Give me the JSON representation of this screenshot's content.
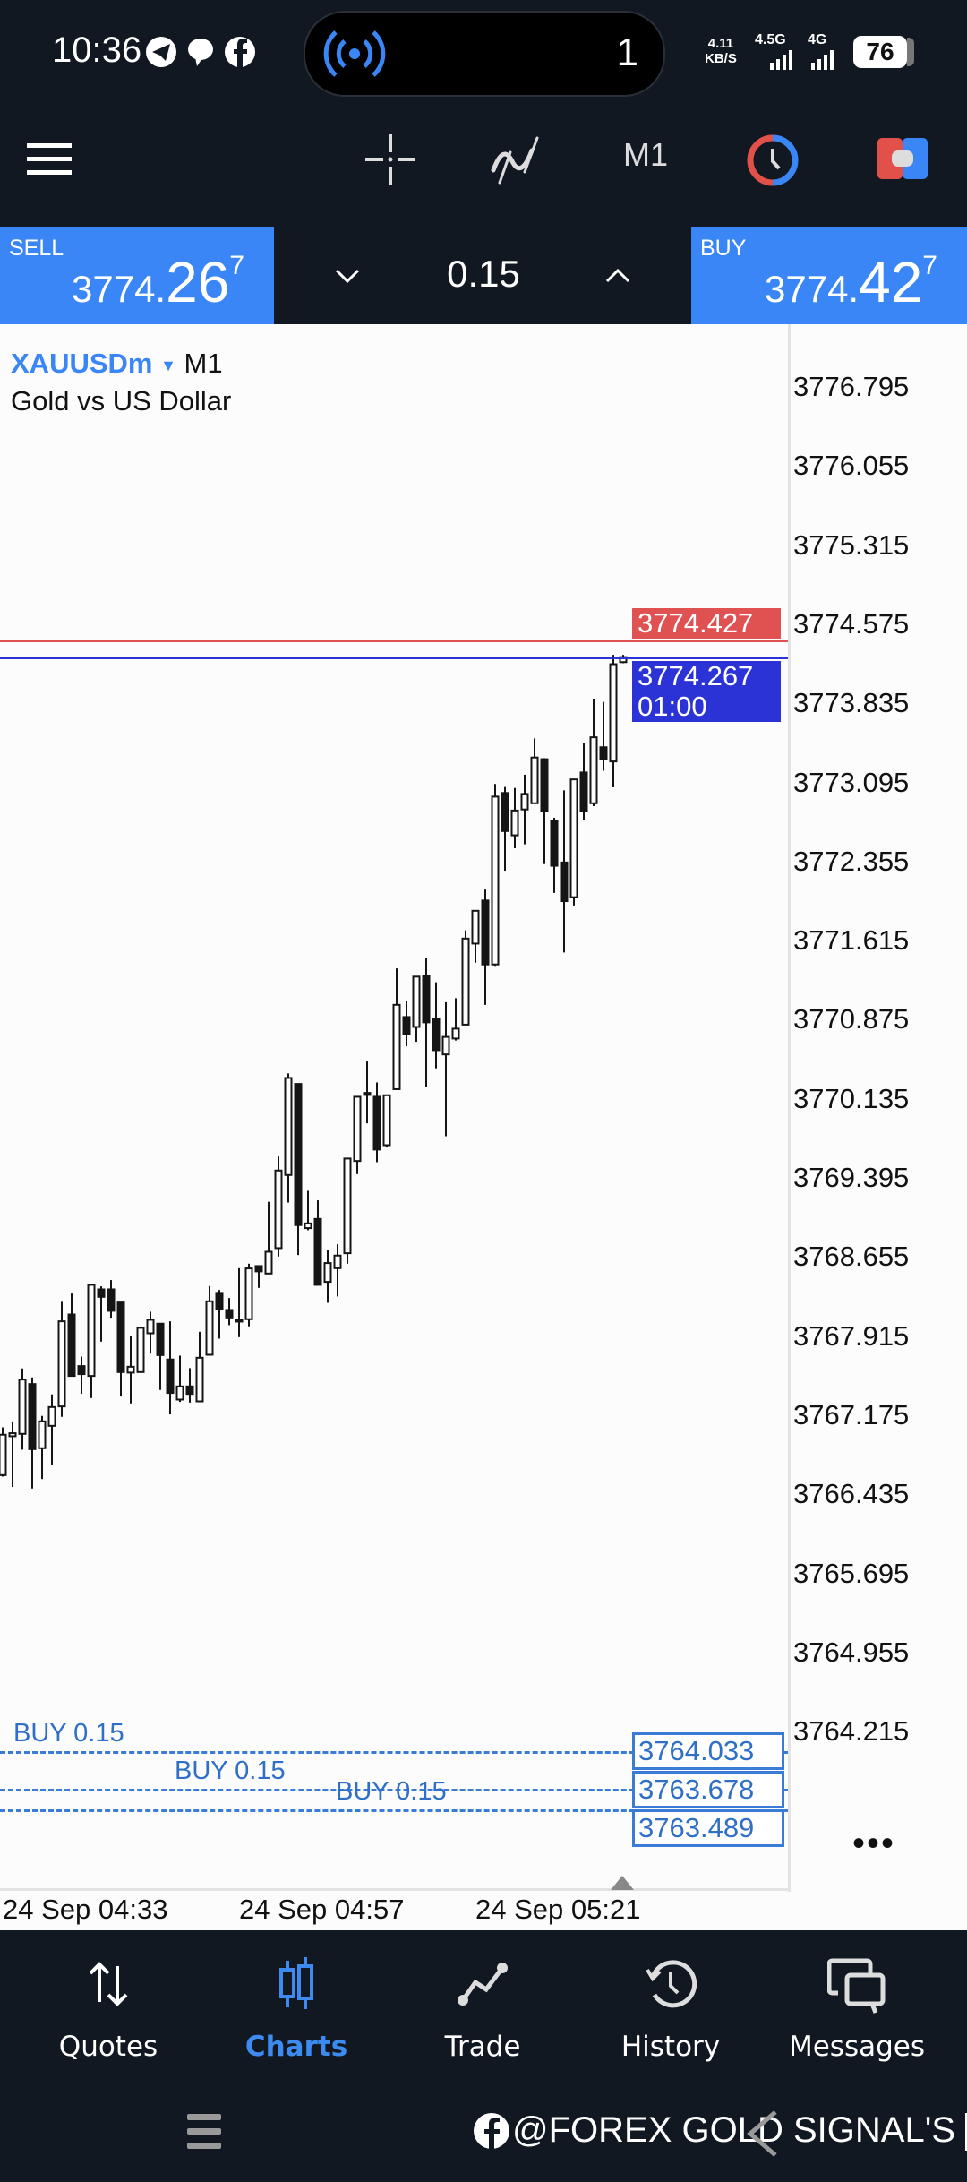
{
  "status_bar": {
    "time": "10:36",
    "notification_icons": [
      "telegram-icon",
      "chat-bubble-icon",
      "facebook-icon"
    ],
    "pill": {
      "icon": "broadcast-icon",
      "count": "1"
    },
    "net_speed_value": "4.11",
    "net_speed_unit": "KB/S",
    "network_1": "4.5G",
    "network_2": "4G",
    "battery": "76"
  },
  "toolbar": {
    "menu_icon": "hamburger-icon",
    "crosshair_icon": "crosshair-icon",
    "indicators_icon": "indicator-icon",
    "timeframe": "M1",
    "clock_icon": "clock-icon",
    "one_click_icon": "one-click-trading-icon"
  },
  "trade_panel": {
    "sell": {
      "label": "SELL",
      "price_main": "3774.",
      "price_big": "26",
      "price_sup": "7"
    },
    "volume": "0.15",
    "buy": {
      "label": "BUY",
      "price_main": "3774.",
      "price_big": "42",
      "price_sup": "7"
    }
  },
  "chart": {
    "symbol": "XAUUSDm",
    "symbol_dropdown_icon": "caret-down-icon",
    "timeframe": "M1",
    "description": "Gold vs US Dollar",
    "ask_label": "3774.427",
    "bid_label": "3774.267",
    "bar_countdown": "01:00",
    "more_icon": "ellipsis-icon",
    "orders": [
      {
        "label": "BUY 0.15",
        "price": "3764.033"
      },
      {
        "label": "BUY 0.15",
        "price": "3763.678"
      },
      {
        "label": "BUY 0.15",
        "price": "3763.489"
      }
    ],
    "colors": {
      "ask_line": "#e05252",
      "bid_line": "#2b33d6",
      "order_line": "#3a7bd5",
      "bull": "#ffffff",
      "bear": "#151515"
    }
  },
  "chart_data": {
    "type": "candlestick",
    "y_ticks": [
      "3776.795",
      "3776.055",
      "3775.315",
      "3774.575",
      "3773.835",
      "3773.095",
      "3772.355",
      "3771.615",
      "3770.875",
      "3770.135",
      "3769.395",
      "3768.655",
      "3767.915",
      "3767.175",
      "3766.435",
      "3765.695",
      "3764.955",
      "3764.215"
    ],
    "x_ticks": [
      "24 Sep 04:33",
      "24 Sep 04:57",
      "24 Sep 05:21"
    ],
    "ask": 3774.427,
    "bid": 3774.267,
    "grid": false,
    "ohlc": [
      [
        3766.614,
        3767.061,
        3766.6,
        3766.992
      ],
      [
        3766.978,
        3767.117,
        3766.503,
        3767.006
      ],
      [
        3767.0,
        3767.612,
        3766.852,
        3767.508
      ],
      [
        3767.466,
        3767.528,
        3766.489,
        3766.857
      ],
      [
        3766.866,
        3767.168,
        3766.578,
        3767.117
      ],
      [
        3767.075,
        3767.369,
        3766.707,
        3767.251
      ],
      [
        3767.257,
        3768.235,
        3767.159,
        3768.053
      ],
      [
        3768.117,
        3768.313,
        3767.542,
        3767.542
      ],
      [
        3767.634,
        3767.723,
        3767.374,
        3767.559
      ],
      [
        3767.542,
        3768.394,
        3767.335,
        3768.394
      ],
      [
        3768.352,
        3768.38,
        3767.863,
        3768.282
      ],
      [
        3768.352,
        3768.439,
        3768.087,
        3768.151
      ],
      [
        3768.229,
        3768.229,
        3767.349,
        3767.578
      ],
      [
        3767.573,
        3767.919,
        3767.285,
        3767.628
      ],
      [
        3767.578,
        3767.992,
        3767.578,
        3767.992
      ],
      [
        3767.941,
        3768.143,
        3767.751,
        3768.067
      ],
      [
        3768.031,
        3768.031,
        3767.411,
        3767.737
      ],
      [
        3767.696,
        3768.053,
        3767.182,
        3767.383
      ],
      [
        3767.321,
        3767.732,
        3767.299,
        3767.444
      ],
      [
        3767.444,
        3767.615,
        3767.293,
        3767.374
      ],
      [
        3767.304,
        3767.955,
        3767.304,
        3767.712
      ],
      [
        3767.74,
        3768.383,
        3767.74,
        3768.24
      ],
      [
        3768.319,
        3768.346,
        3767.891,
        3768.165
      ],
      [
        3768.159,
        3768.271,
        3768.017,
        3768.089
      ],
      [
        3768.067,
        3768.55,
        3767.905,
        3768.053
      ],
      [
        3768.073,
        3768.592,
        3768.006,
        3768.548
      ],
      [
        3768.57,
        3768.578,
        3768.366,
        3768.52
      ],
      [
        3768.5,
        3769.171,
        3768.5,
        3768.704
      ],
      [
        3768.738,
        3769.595,
        3768.659,
        3769.464
      ],
      [
        3769.422,
        3770.372,
        3769.165,
        3770.33
      ],
      [
        3770.274,
        3770.274,
        3768.673,
        3768.953
      ],
      [
        3768.925,
        3769.274,
        3768.905,
        3768.969
      ],
      [
        3769.011,
        3769.185,
        3768.394,
        3768.394
      ],
      [
        3768.422,
        3768.718,
        3768.226,
        3768.598
      ],
      [
        3768.55,
        3768.774,
        3768.285,
        3768.668
      ],
      [
        3768.69,
        3769.576,
        3768.592,
        3769.576
      ],
      [
        3769.553,
        3770.154,
        3769.43,
        3770.154
      ],
      [
        3770.19,
        3770.484,
        3769.905,
        3770.171
      ],
      [
        3770.154,
        3770.288,
        3769.542,
        3769.66
      ],
      [
        3769.701,
        3770.168,
        3769.679,
        3770.168
      ],
      [
        3770.225,
        3771.355,
        3770.225,
        3771.014
      ],
      [
        3770.9,
        3771.055,
        3770.627,
        3770.742
      ],
      [
        3770.807,
        3771.278,
        3770.668,
        3771.278
      ],
      [
        3771.287,
        3771.448,
        3770.25,
        3770.85
      ],
      [
        3770.881,
        3771.225,
        3770.42,
        3770.59
      ],
      [
        3770.55,
        3771.039,
        3769.785,
        3770.714
      ],
      [
        3770.699,
        3771.076,
        3770.68,
        3770.791
      ],
      [
        3770.829,
        3771.711,
        3770.829,
        3771.634
      ],
      [
        3771.587,
        3771.894,
        3771.408,
        3771.894
      ],
      [
        3771.99,
        3772.092,
        3771.014,
        3771.392
      ],
      [
        3771.392,
        3773.08,
        3771.371,
        3772.962
      ],
      [
        3772.996,
        3773.052,
        3772.269,
        3772.64
      ],
      [
        3772.6,
        3773.043,
        3772.479,
        3772.832
      ],
      [
        3772.842,
        3773.167,
        3772.516,
        3772.987
      ],
      [
        3772.9,
        3773.507,
        3772.9,
        3773.328
      ],
      [
        3773.312,
        3773.322,
        3772.331,
        3772.823
      ],
      [
        3772.739,
        3772.764,
        3772.061,
        3772.315
      ],
      [
        3772.346,
        3773.021,
        3771.504,
        3771.984
      ],
      [
        3772.021,
        3773.123,
        3771.944,
        3773.123
      ],
      [
        3773.188,
        3773.467,
        3772.743,
        3772.826
      ],
      [
        3772.9,
        3773.879,
        3772.873,
        3773.517
      ],
      [
        3773.424,
        3773.848,
        3773.204,
        3773.315
      ],
      [
        3773.291,
        3774.288,
        3773.049,
        3774.201
      ],
      [
        3774.22,
        3774.288,
        3774.21,
        3774.267
      ]
    ]
  },
  "bottom_nav": {
    "items": [
      {
        "label": "Quotes",
        "icon": "sort-arrows-icon"
      },
      {
        "label": "Charts",
        "icon": "candlestick-icon",
        "active": true
      },
      {
        "label": "Trade",
        "icon": "trend-line-icon"
      },
      {
        "label": "History",
        "icon": "history-icon"
      },
      {
        "label": "Messages",
        "icon": "messages-icon"
      }
    ]
  },
  "system_nav": {
    "menu_icon": "recent-apps-icon",
    "watermark": "@FOREX GOLD SIGNAL'S"
  }
}
